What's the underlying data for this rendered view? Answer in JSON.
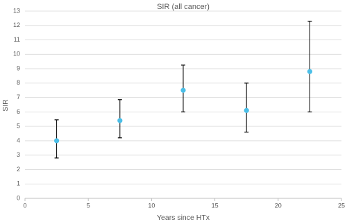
{
  "chart_data": {
    "type": "scatter",
    "title": "SIR (all cancer)",
    "x_label": "Years since HTx",
    "y_label": "SIR",
    "series": [
      {
        "x": [
          2.5,
          7.5,
          12.5,
          17.5,
          22.5
        ],
        "values": [
          4.0,
          5.4,
          7.5,
          6.1,
          8.8
        ],
        "lower": [
          2.8,
          4.2,
          6.0,
          4.6,
          6.0
        ],
        "upper": [
          5.45,
          6.85,
          9.25,
          8.0,
          12.3
        ],
        "color": "#4bbfe8"
      }
    ],
    "xlim": [
      0,
      25
    ],
    "xticks": [
      0,
      5,
      10,
      15,
      20,
      25
    ],
    "ylim": [
      0,
      13
    ],
    "yticks": [
      0,
      1,
      2,
      3,
      4,
      5,
      6,
      7,
      8,
      9,
      10,
      11,
      12,
      13
    ],
    "grid": true
  }
}
